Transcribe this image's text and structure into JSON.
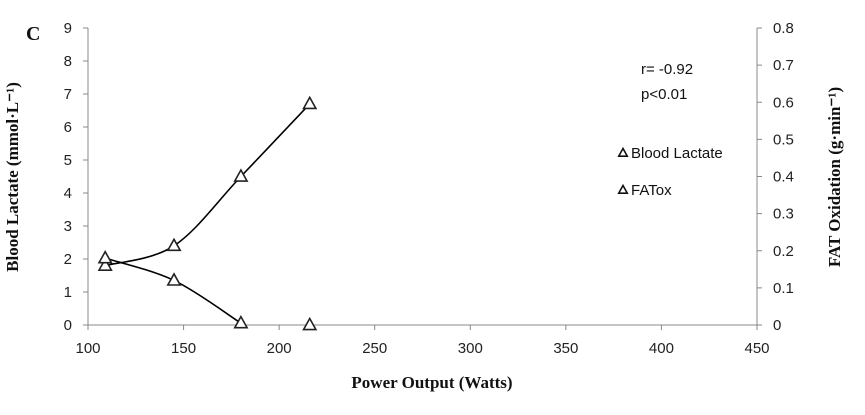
{
  "panel_label": "C",
  "annotations": {
    "r": "r= -0.92",
    "p": "p<0.01"
  },
  "chart_data": {
    "type": "line",
    "title": "",
    "xlabel": "Power Output (Watts)",
    "ylabel": "Blood Lactate (mmol·L⁻¹)",
    "y2label": "FAT Oxidation (g·min⁻¹)",
    "xlim": [
      100,
      450
    ],
    "ylim": [
      0,
      9
    ],
    "y2lim": [
      0,
      0.8
    ],
    "x_ticks": [
      "100",
      "150",
      "200",
      "250",
      "300",
      "350",
      "400",
      "450"
    ],
    "y_ticks": [
      "0",
      "1",
      "2",
      "3",
      "4",
      "5",
      "6",
      "7",
      "8",
      "9"
    ],
    "y2_ticks": [
      "0",
      "0.1",
      "0.2",
      "0.3",
      "0.4",
      "0.5",
      "0.6",
      "0.7",
      "0.8"
    ],
    "legend_position": "right",
    "series": [
      {
        "name": "Blood Lactate",
        "axis": "left",
        "marker": "triangle-open",
        "x": [
          109,
          145,
          180,
          216
        ],
        "y": [
          1.8,
          2.4,
          4.5,
          6.7
        ]
      },
      {
        "name": "FATox",
        "axis": "right",
        "marker": "triangle-open",
        "x": [
          109,
          145,
          180,
          216
        ],
        "y": [
          0.18,
          0.12,
          0.005,
          0.0
        ]
      }
    ]
  }
}
